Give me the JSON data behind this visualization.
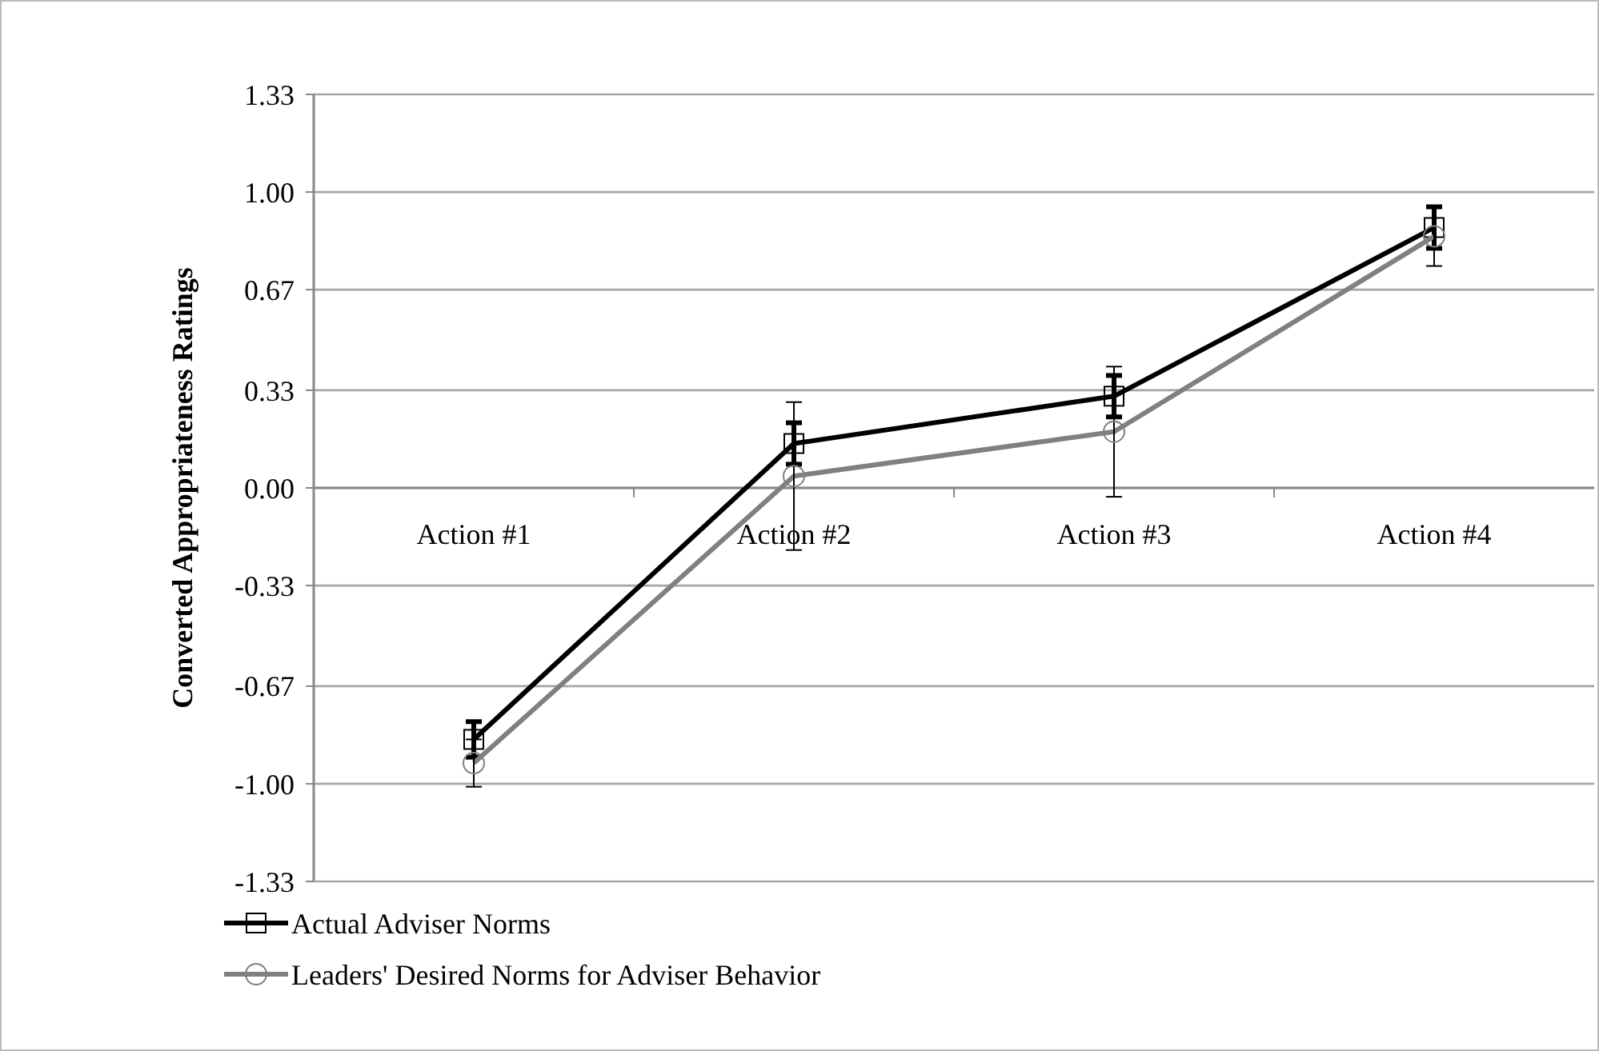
{
  "chart_data": {
    "type": "line",
    "ylabel": "Converted Appropriateness Ratings",
    "categories": [
      "Action #1",
      "Action #2",
      "Action #3",
      "Action #4"
    ],
    "series": [
      {
        "name": "Actual Adviser Norms",
        "color": "#000000",
        "marker": "square",
        "values": [
          -0.85,
          0.15,
          0.31,
          0.88
        ],
        "errors": [
          0.06,
          0.07,
          0.07,
          0.07
        ]
      },
      {
        "name": "Leaders' Desired Norms for Adviser Behavior",
        "color": "#808080",
        "marker": "circle",
        "values": [
          -0.93,
          0.04,
          0.19,
          0.85
        ],
        "errors": [
          0.08,
          0.25,
          0.22,
          0.1
        ]
      }
    ],
    "ylim": [
      -1.33,
      1.33
    ],
    "yticks": [
      -1.33,
      {
        "value": -1,
        "label": "-1.00"
      },
      -0.67,
      -0.33,
      {
        "value": 0,
        "label": "0.00"
      },
      0.33,
      0.67,
      {
        "value": 1,
        "label": "1.00"
      },
      1.33
    ],
    "grid": "y",
    "legend": "bottom left",
    "line_style": "solid"
  }
}
